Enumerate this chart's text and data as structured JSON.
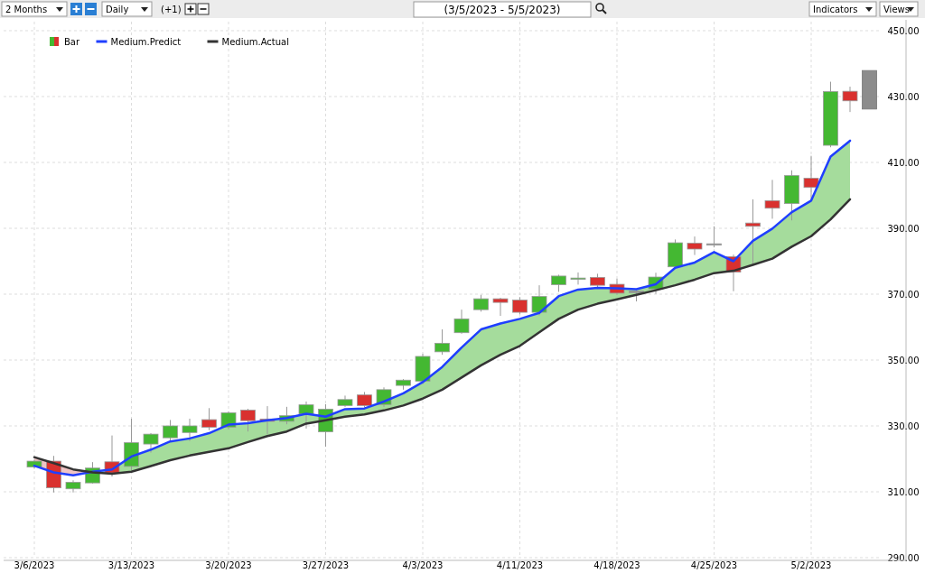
{
  "chart_data": {
    "type": "candlestick",
    "title": "(3/5/2023 - 5/5/2023)",
    "annotations": [
      "2 Months",
      "Daily",
      "(+1)",
      "Indicators",
      "Views"
    ],
    "categories": [
      "3/6/2023",
      null,
      null,
      null,
      null,
      "3/13/2023",
      null,
      null,
      null,
      null,
      "3/20/2023",
      null,
      null,
      null,
      null,
      "3/27/2023",
      null,
      null,
      null,
      null,
      "4/3/2023",
      null,
      null,
      null,
      null,
      "4/11/2023",
      null,
      null,
      null,
      null,
      "4/18/2023",
      null,
      null,
      null,
      null,
      "4/25/2023",
      null,
      null,
      null,
      null,
      "5/2/2023",
      null,
      null,
      null
    ],
    "ylim": [
      290,
      450
    ],
    "yticks": [
      {
        "value": 290,
        "label": "290.00"
      },
      {
        "value": 310,
        "label": "310.00"
      },
      {
        "value": 330,
        "label": "330.00"
      },
      {
        "value": 350,
        "label": "350.00"
      },
      {
        "value": 370,
        "label": "370.00"
      },
      {
        "value": 390,
        "label": "390.00"
      },
      {
        "value": 410,
        "label": "410.00"
      },
      {
        "value": 430,
        "label": "430.00"
      },
      {
        "value": 450,
        "label": "450.00"
      }
    ],
    "grid": true,
    "legend": "top left",
    "series": [
      {
        "name": "Bar",
        "ohlc": [
          [
            317.5,
            319.8,
            317.0,
            319.3
          ],
          [
            319.3,
            320.9,
            309.8,
            311.2
          ],
          [
            310.9,
            313.5,
            309.8,
            312.9
          ],
          [
            312.7,
            319.0,
            312.5,
            317.2
          ],
          [
            319.1,
            327.1,
            314.6,
            315.7
          ],
          [
            317.7,
            332.2,
            316.5,
            324.9
          ],
          [
            324.5,
            327.8,
            321.9,
            327.5
          ],
          [
            326.4,
            331.8,
            325.1,
            330.0
          ],
          [
            328.0,
            332.2,
            325.4,
            330.0
          ],
          [
            331.9,
            335.4,
            328.7,
            329.6
          ],
          [
            329.6,
            334.4,
            329.0,
            334.0
          ],
          [
            334.8,
            335.2,
            328.3,
            331.6
          ],
          [
            332.1,
            336.0,
            327.5,
            331.4
          ],
          [
            331.4,
            335.8,
            330.5,
            333.1
          ],
          [
            333.6,
            337.4,
            329.2,
            336.4
          ],
          [
            328.2,
            336.6,
            323.7,
            335.1
          ],
          [
            336.2,
            339.2,
            335.8,
            338.0
          ],
          [
            339.4,
            340.3,
            335.6,
            336.2
          ],
          [
            336.5,
            341.7,
            335.8,
            341.0
          ],
          [
            342.3,
            344.2,
            341.0,
            343.9
          ],
          [
            343.6,
            351.9,
            342.7,
            351.1
          ],
          [
            352.5,
            359.3,
            351.6,
            355.1
          ],
          [
            358.3,
            365.3,
            358.0,
            362.5
          ],
          [
            365.3,
            369.8,
            364.7,
            368.6
          ],
          [
            368.6,
            368.9,
            363.4,
            367.5
          ],
          [
            368.2,
            369.1,
            363.9,
            364.5
          ],
          [
            364.5,
            372.7,
            363.6,
            369.3
          ],
          [
            372.9,
            375.9,
            370.7,
            375.5
          ],
          [
            374.7,
            376.6,
            372.9,
            374.9
          ],
          [
            375.1,
            376.2,
            371.6,
            372.7
          ],
          [
            373.0,
            374.7,
            369.8,
            370.3
          ],
          [
            370.9,
            371.6,
            367.8,
            370.9
          ],
          [
            371.6,
            376.5,
            370.1,
            375.2
          ],
          [
            378.3,
            386.6,
            378.1,
            385.6
          ],
          [
            385.5,
            387.5,
            381.9,
            383.7
          ],
          [
            385.3,
            390.6,
            384.2,
            385.3
          ],
          [
            381.4,
            382.0,
            370.9,
            376.7
          ],
          [
            391.6,
            398.8,
            379.2,
            390.6
          ],
          [
            398.4,
            404.7,
            392.9,
            396.1
          ],
          [
            397.5,
            407.6,
            392.4,
            406.0
          ],
          [
            405.2,
            412.0,
            398.6,
            402.4
          ],
          [
            415.2,
            434.5,
            414.6,
            431.5
          ],
          [
            431.6,
            433.0,
            425.3,
            428.7
          ],
          null
        ],
        "colors": [
          "#44b832",
          "#d9312f",
          "#44b832",
          "#44b832",
          "#d9312f",
          "#44b832",
          "#44b832",
          "#44b832",
          "#44b832",
          "#d9312f",
          "#44b832",
          "#d9312f",
          "#d9312f",
          "#44b832",
          "#44b832",
          "#44b832",
          "#44b832",
          "#d9312f",
          "#44b832",
          "#44b832",
          "#44b832",
          "#44b832",
          "#44b832",
          "#44b832",
          "#d9312f",
          "#d9312f",
          "#44b832",
          "#44b832",
          "#44b832",
          "#d9312f",
          "#d9312f",
          "#888888",
          "#44b832",
          "#44b832",
          "#d9312f",
          "#888888",
          "#d9312f",
          "#d9312f",
          "#d9312f",
          "#44b832",
          "#d9312f",
          "#44b832",
          "#d9312f",
          null
        ]
      },
      {
        "name": "Medium.Predict",
        "type": "line",
        "color": "#1f3fff",
        "values": [
          317.9,
          315.9,
          315.0,
          316.1,
          316.8,
          320.7,
          322.8,
          325.3,
          326.2,
          327.8,
          330.4,
          330.8,
          331.7,
          332.4,
          333.7,
          332.8,
          335.1,
          335.3,
          337.4,
          339.9,
          343.3,
          347.9,
          353.8,
          359.3,
          361.1,
          362.5,
          364.3,
          369.4,
          371.4,
          371.9,
          371.8,
          371.5,
          373.0,
          378.0,
          379.6,
          382.8,
          380.0,
          386.2,
          389.9,
          394.9,
          398.4,
          411.8,
          416.6,
          null
        ]
      },
      {
        "name": "Medium.Actual",
        "type": "line",
        "color": "#333333",
        "values": [
          320.5,
          318.7,
          316.8,
          315.9,
          315.5,
          316.1,
          317.8,
          319.6,
          321.0,
          322.1,
          323.2,
          325.1,
          326.9,
          328.3,
          330.7,
          331.7,
          332.8,
          333.5,
          334.7,
          336.2,
          338.3,
          341.0,
          344.7,
          348.4,
          351.6,
          354.3,
          358.4,
          362.5,
          365.3,
          367.1,
          368.4,
          369.8,
          371.2,
          372.7,
          374.4,
          376.4,
          377.1,
          378.9,
          380.8,
          384.4,
          387.6,
          392.7,
          398.8,
          null
        ]
      },
      {
        "type": "bar",
        "color": "#8c8c8c",
        "base": [
          null,
          null,
          null,
          null,
          null,
          null,
          null,
          null,
          null,
          null,
          null,
          null,
          null,
          null,
          null,
          null,
          null,
          null,
          null,
          null,
          null,
          null,
          null,
          null,
          null,
          null,
          null,
          null,
          null,
          null,
          null,
          null,
          null,
          null,
          null,
          null,
          null,
          null,
          null,
          null,
          null,
          null,
          null,
          426.2
        ],
        "values": [
          null,
          null,
          null,
          null,
          null,
          null,
          null,
          null,
          null,
          null,
          null,
          null,
          null,
          null,
          null,
          null,
          null,
          null,
          null,
          null,
          null,
          null,
          null,
          null,
          null,
          null,
          null,
          null,
          null,
          null,
          null,
          null,
          null,
          null,
          null,
          null,
          null,
          null,
          null,
          null,
          null,
          null,
          null,
          11.7
        ]
      }
    ]
  }
}
